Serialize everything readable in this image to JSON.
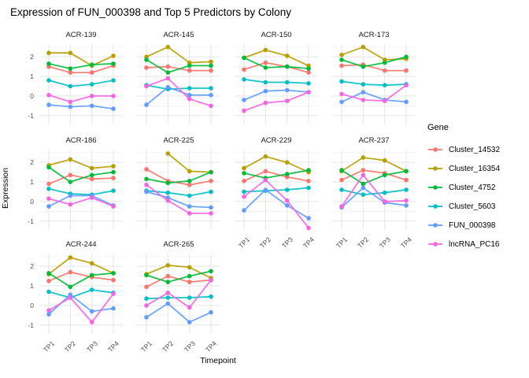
{
  "title": "Expression of FUN_000398 and Top 5 Predictors by Colony",
  "colors": {
    "background": "#FFFFFF",
    "grid_major": "#E5E5E5",
    "grid_minor": "#F2F2F2",
    "axis_text": "#4D4D4D",
    "text": "#000000"
  },
  "legend": {
    "title": "Gene",
    "entries": [
      {
        "label": "Cluster_14532",
        "color": "#F8766D"
      },
      {
        "label": "Cluster_16354",
        "color": "#B79F00"
      },
      {
        "label": "Cluster_4752",
        "color": "#00BA38"
      },
      {
        "label": "Cluster_5603",
        "color": "#00BFC4"
      },
      {
        "label": "FUN_000398",
        "color": "#619CFF"
      },
      {
        "label": "lncRNA_PC16",
        "color": "#F564E3"
      }
    ]
  },
  "chart_data": {
    "type": "line",
    "title": "Expression of FUN_000398 and Top 5 Predictors by Colony",
    "xlabel": "Timepoint",
    "ylabel": "Expression",
    "x_categories": [
      "TP1",
      "TP2",
      "TP3",
      "TP4"
    ],
    "y_ticks": [
      -1,
      0,
      1,
      2
    ],
    "y_minor_ticks": [
      -0.5,
      0.5,
      1.5,
      2.5
    ],
    "ylim": [
      -1.45,
      2.65
    ],
    "grid": true,
    "legend_position": "right",
    "legend_title": "Gene",
    "series_order": [
      "Cluster_14532",
      "Cluster_16354",
      "Cluster_4752",
      "Cluster_5603",
      "FUN_000398",
      "lncRNA_PC16"
    ],
    "series_colors": {
      "Cluster_14532": "#F8766D",
      "Cluster_16354": "#B79F00",
      "Cluster_4752": "#00BA38",
      "Cluster_5603": "#00BFC4",
      "FUN_000398": "#619CFF",
      "lncRNA_PC16": "#F564E3"
    },
    "facets": [
      {
        "name": "ACR-139",
        "series": {
          "Cluster_14532": [
            1.5,
            1.2,
            1.2,
            1.55
          ],
          "Cluster_16354": [
            2.2,
            2.2,
            1.55,
            2.05
          ],
          "Cluster_4752": [
            1.65,
            1.4,
            1.6,
            1.65
          ],
          "Cluster_5603": [
            0.8,
            0.5,
            0.6,
            0.8
          ],
          "FUN_000398": [
            -0.45,
            -0.55,
            -0.5,
            -0.65
          ],
          "lncRNA_PC16": [
            0.05,
            -0.3,
            0.0,
            0.0
          ]
        }
      },
      {
        "name": "ACR-145",
        "series": {
          "Cluster_14532": [
            1.45,
            1.5,
            1.3,
            1.3
          ],
          "Cluster_16354": [
            2.0,
            2.5,
            1.7,
            1.75
          ],
          "Cluster_4752": [
            1.85,
            1.2,
            1.55,
            1.55
          ],
          "Cluster_5603": [
            0.55,
            0.35,
            0.4,
            0.4
          ],
          "FUN_000398": [
            -0.45,
            0.45,
            0.05,
            0.05
          ],
          "lncRNA_PC16": [
            0.5,
            0.9,
            -0.15,
            -0.5
          ]
        }
      },
      {
        "name": "ACR-150",
        "series": {
          "Cluster_14532": [
            1.35,
            1.7,
            1.5,
            1.2
          ],
          "Cluster_16354": [
            1.95,
            2.35,
            2.05,
            1.55
          ],
          "Cluster_4752": [
            1.95,
            1.45,
            1.5,
            1.4
          ],
          "Cluster_5603": [
            0.85,
            0.7,
            0.7,
            0.65
          ],
          "FUN_000398": [
            -0.2,
            0.25,
            0.3,
            0.2
          ],
          "lncRNA_PC16": [
            -0.75,
            -0.35,
            -0.25,
            0.2
          ]
        }
      },
      {
        "name": "ACR-173",
        "series": {
          "Cluster_14532": [
            1.55,
            1.6,
            1.3,
            1.3
          ],
          "Cluster_16354": [
            2.1,
            2.5,
            1.85,
            1.9
          ],
          "Cluster_4752": [
            1.85,
            1.5,
            1.7,
            2.0
          ],
          "Cluster_5603": [
            0.75,
            0.6,
            0.55,
            0.6
          ],
          "FUN_000398": [
            -0.3,
            0.2,
            -0.2,
            -0.3
          ],
          "lncRNA_PC16": [
            0.1,
            -0.2,
            -0.25,
            0.55
          ]
        }
      },
      {
        "name": "ACR-186",
        "series": {
          "Cluster_14532": [
            0.9,
            1.35,
            1.15,
            1.2
          ],
          "Cluster_16354": [
            1.85,
            2.15,
            1.7,
            1.8
          ],
          "Cluster_4752": [
            1.75,
            1.0,
            1.35,
            1.5
          ],
          "Cluster_5603": [
            0.65,
            0.4,
            0.35,
            0.55
          ],
          "FUN_000398": [
            -0.25,
            0.3,
            0.3,
            -0.2
          ],
          "lncRNA_PC16": [
            0.15,
            -0.15,
            0.2,
            -0.25
          ]
        }
      },
      {
        "name": "ACR-225",
        "series": {
          "Cluster_14532": [
            1.65,
            1.05,
            0.85,
            1.05
          ],
          "Cluster_16354": [
            null,
            2.45,
            1.55,
            1.5
          ],
          "Cluster_4752": [
            1.15,
            0.95,
            1.05,
            1.5
          ],
          "Cluster_5603": [
            0.55,
            0.45,
            0.3,
            0.5
          ],
          "FUN_000398": [
            0.5,
            0.2,
            -0.25,
            -0.3
          ],
          "lncRNA_PC16": [
            0.85,
            0.05,
            -0.6,
            -0.6
          ]
        }
      },
      {
        "name": "ACR-229",
        "series": {
          "Cluster_14532": [
            1.05,
            1.55,
            1.25,
            1.05
          ],
          "Cluster_16354": [
            1.7,
            2.3,
            2.0,
            1.5
          ],
          "Cluster_4752": [
            1.45,
            1.2,
            1.4,
            1.6
          ],
          "Cluster_5603": [
            0.5,
            0.55,
            0.6,
            0.7
          ],
          "FUN_000398": [
            -0.45,
            0.6,
            -0.2,
            -0.85
          ],
          "lncRNA_PC16": [
            0.25,
            1.1,
            0.05,
            -1.35
          ]
        }
      },
      {
        "name": "ACR-237",
        "series": {
          "Cluster_14532": [
            1.1,
            1.6,
            1.45,
            1.1
          ],
          "Cluster_16354": [
            1.55,
            2.25,
            2.1,
            1.55
          ],
          "Cluster_4752": [
            1.6,
            0.9,
            1.35,
            1.55
          ],
          "Cluster_5603": [
            0.6,
            0.35,
            0.45,
            0.6
          ],
          "FUN_000398": [
            -0.3,
            0.7,
            -0.05,
            -0.2
          ],
          "lncRNA_PC16": [
            -0.25,
            1.35,
            0.0,
            0.05
          ]
        }
      },
      {
        "name": "ACR-244",
        "series": {
          "Cluster_14532": [
            1.25,
            1.7,
            1.45,
            1.3
          ],
          "Cluster_16354": [
            1.6,
            2.45,
            2.15,
            1.65
          ],
          "Cluster_4752": [
            1.65,
            0.95,
            1.55,
            1.65
          ],
          "Cluster_5603": [
            0.7,
            0.4,
            0.8,
            0.65
          ],
          "FUN_000398": [
            -0.45,
            0.55,
            -0.3,
            -0.15
          ],
          "lncRNA_PC16": [
            -0.25,
            0.4,
            -0.85,
            0.6
          ]
        }
      },
      {
        "name": "ACR-265",
        "series": {
          "Cluster_14532": [
            0.95,
            1.5,
            1.2,
            1.3
          ],
          "Cluster_16354": [
            1.6,
            2.05,
            1.95,
            1.4
          ],
          "Cluster_4752": [
            1.55,
            1.2,
            1.5,
            1.75
          ],
          "Cluster_5603": [
            0.35,
            0.4,
            0.4,
            0.45
          ],
          "FUN_000398": [
            -0.6,
            0.1,
            -0.85,
            -0.35
          ],
          "lncRNA_PC16": [
            0.0,
            0.65,
            -0.1,
            1.3
          ]
        }
      }
    ]
  }
}
